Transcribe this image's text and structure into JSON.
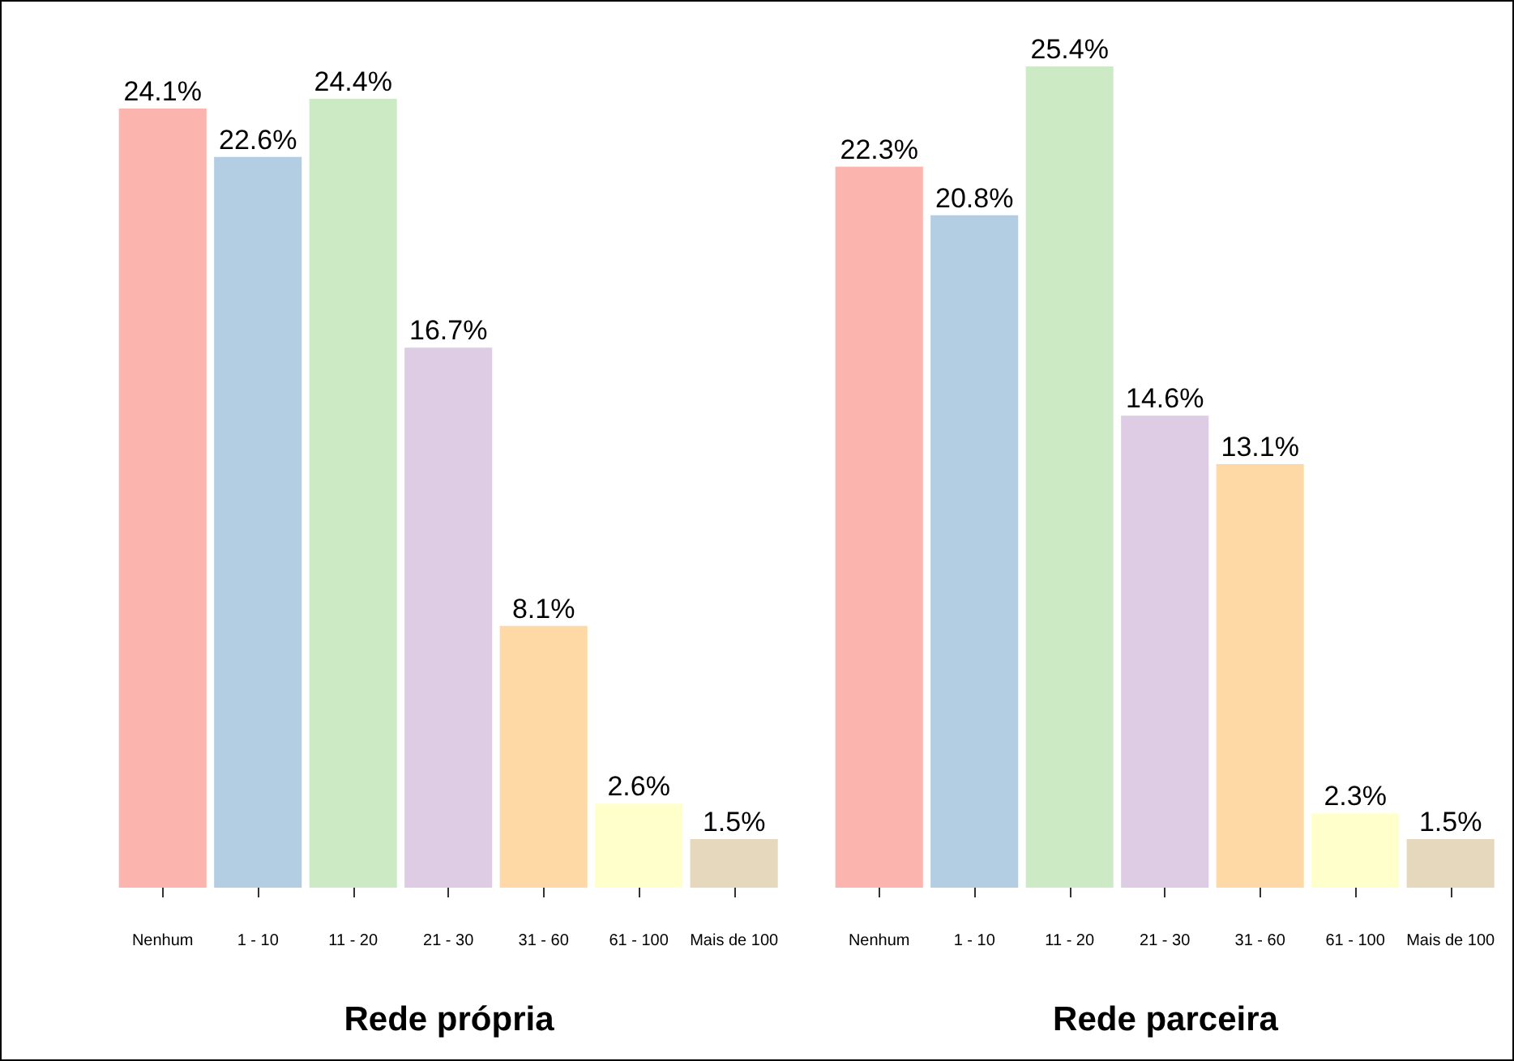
{
  "chart_data": [
    {
      "type": "bar",
      "title": "Rede própria",
      "categories": [
        "Nenhum",
        "1 - 10",
        "11 - 20",
        "21 - 30",
        "31 - 60",
        "61 - 100",
        "Mais de 100"
      ],
      "values": [
        24.1,
        22.6,
        24.4,
        16.7,
        8.1,
        2.6,
        1.5
      ],
      "value_labels": [
        "24.1%",
        "22.6%",
        "24.4%",
        "16.7%",
        "8.1%",
        "2.6%",
        "1.5%"
      ],
      "colors": [
        "#fbb4ae",
        "#b3cde3",
        "#ccebc5",
        "#decbe4",
        "#fed9a6",
        "#ffffcc",
        "#e5d8bd"
      ]
    },
    {
      "type": "bar",
      "title": "Rede parceira",
      "categories": [
        "Nenhum",
        "1 - 10",
        "11 - 20",
        "21 - 30",
        "31 - 60",
        "61 - 100",
        "Mais de 100"
      ],
      "values": [
        22.3,
        20.8,
        25.4,
        14.6,
        13.1,
        2.3,
        1.5
      ],
      "value_labels": [
        "22.3%",
        "20.8%",
        "25.4%",
        "14.6%",
        "13.1%",
        "2.3%",
        "1.5%"
      ],
      "colors": [
        "#fbb4ae",
        "#b3cde3",
        "#ccebc5",
        "#decbe4",
        "#fed9a6",
        "#ffffcc",
        "#e5d8bd"
      ]
    }
  ]
}
